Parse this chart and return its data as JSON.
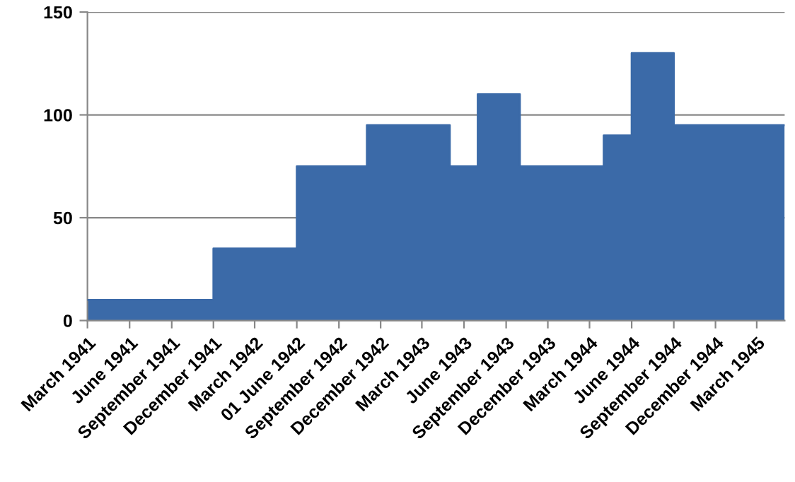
{
  "chart_data": {
    "type": "area",
    "x": [
      "1941-03",
      "1941-12",
      "1941-12",
      "1942-06",
      "1942-06",
      "1942-11",
      "1942-11",
      "1943-05",
      "1943-05",
      "1943-07",
      "1943-07",
      "1943-10",
      "1943-10",
      "1944-04",
      "1944-04",
      "1944-06",
      "1944-06",
      "1944-09",
      "1944-09",
      "1945-05"
    ],
    "series": [
      {
        "color": "#3b6aa8",
        "values": [
          10,
          10,
          35,
          35,
          75,
          75,
          95,
          95,
          75,
          75,
          110,
          110,
          75,
          75,
          90,
          90,
          130,
          130,
          95,
          95
        ]
      }
    ],
    "xlim": [
      "1941-03",
      "1945-05"
    ],
    "xticks": [
      {
        "value": "1941-03",
        "label": "March 1941"
      },
      {
        "value": "1941-06",
        "label": "June 1941"
      },
      {
        "value": "1941-09",
        "label": "September 1941"
      },
      {
        "value": "1941-12",
        "label": "December 1941"
      },
      {
        "value": "1942-03",
        "label": "March 1942"
      },
      {
        "value": "1942-06",
        "label": "01 June 1942"
      },
      {
        "value": "1942-09",
        "label": "September 1942"
      },
      {
        "value": "1942-12",
        "label": "December 1942"
      },
      {
        "value": "1943-03",
        "label": "March 1943"
      },
      {
        "value": "1943-06",
        "label": "June 1943"
      },
      {
        "value": "1943-09",
        "label": "September 1943"
      },
      {
        "value": "1943-12",
        "label": "December 1943"
      },
      {
        "value": "1944-03",
        "label": "March 1944"
      },
      {
        "value": "1944-06",
        "label": "June 1944"
      },
      {
        "value": "1944-09",
        "label": "September 1944"
      },
      {
        "value": "1944-12",
        "label": "December 1944"
      },
      {
        "value": "1945-03",
        "label": "March 1945"
      }
    ],
    "ylim": [
      0,
      150
    ],
    "yticks": [
      0,
      50,
      100,
      150
    ],
    "grid": "y",
    "legend": false
  }
}
